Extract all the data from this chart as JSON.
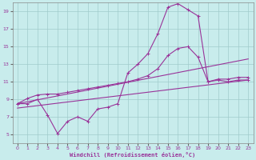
{
  "xlabel": "Windchill (Refroidissement éolien,°C)",
  "bg_color": "#c8ecec",
  "grid_color": "#a0cccc",
  "line_color": "#993399",
  "label_color": "#993399",
  "xlim": [
    -0.5,
    23.5
  ],
  "ylim": [
    4.0,
    20.0
  ],
  "yticks": [
    5,
    7,
    9,
    11,
    13,
    15,
    17,
    19
  ],
  "xticks": [
    0,
    1,
    2,
    3,
    4,
    5,
    6,
    7,
    8,
    9,
    10,
    11,
    12,
    13,
    14,
    15,
    16,
    17,
    18,
    19,
    20,
    21,
    22,
    23
  ],
  "line1_x": [
    0,
    1,
    2,
    3,
    4,
    5,
    6,
    7,
    8,
    9,
    10,
    11,
    12,
    13,
    14,
    15,
    16,
    17,
    18,
    19,
    20,
    21,
    22,
    23
  ],
  "line1_y": [
    8.5,
    8.5,
    9.0,
    7.2,
    5.1,
    6.5,
    7.0,
    6.5,
    7.9,
    8.1,
    8.5,
    12.0,
    13.0,
    14.2,
    16.5,
    19.5,
    19.9,
    19.2,
    18.5,
    11.0,
    11.2,
    11.0,
    11.2,
    11.2
  ],
  "line2_x": [
    0,
    1,
    2,
    3,
    4,
    5,
    6,
    7,
    8,
    9,
    10,
    11,
    12,
    13,
    14,
    15,
    16,
    17,
    18,
    19,
    20,
    21,
    22,
    23
  ],
  "line2_y": [
    8.5,
    9.1,
    9.5,
    9.6,
    9.6,
    9.8,
    10.0,
    10.2,
    10.4,
    10.6,
    10.8,
    11.0,
    11.3,
    11.7,
    12.5,
    14.0,
    14.8,
    15.0,
    13.8,
    11.0,
    11.3,
    11.3,
    11.5,
    11.5
  ],
  "line3_x": [
    0,
    23
  ],
  "line3_y": [
    8.5,
    13.6
  ],
  "line4_x": [
    0,
    23
  ],
  "line4_y": [
    8.0,
    11.2
  ]
}
